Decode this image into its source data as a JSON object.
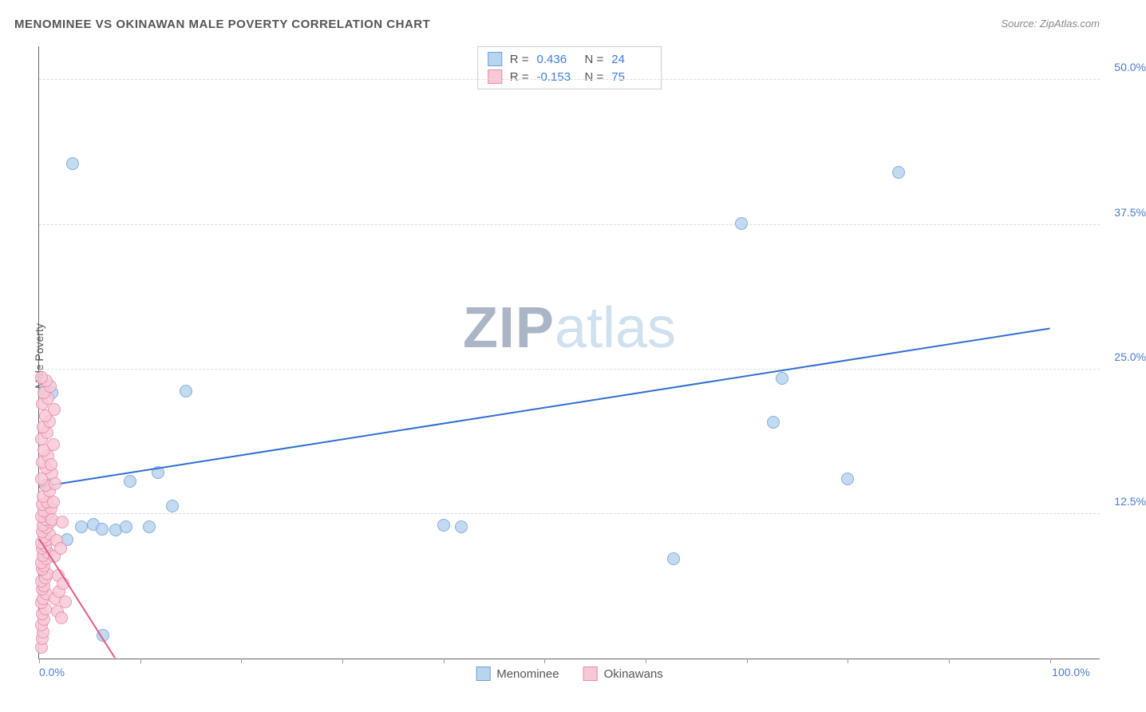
{
  "title": "MENOMINEE VS OKINAWAN MALE POVERTY CORRELATION CHART",
  "source": "Source: ZipAtlas.com",
  "ylabel": "Male Poverty",
  "watermark_zip": "ZIP",
  "watermark_atlas": "atlas",
  "chart": {
    "type": "scatter",
    "xlim": [
      0,
      105
    ],
    "ylim": [
      0,
      53
    ],
    "xticks": [
      0,
      10,
      20,
      30,
      40,
      50,
      60,
      70,
      80,
      90,
      100
    ],
    "xtick_labels_shown": {
      "0": "0.0%",
      "100": "100.0%"
    },
    "yticks": [
      12.5,
      25.0,
      37.5,
      50.0
    ],
    "ytick_labels": [
      "12.5%",
      "25.0%",
      "37.5%",
      "50.0%"
    ],
    "background_color": "#ffffff",
    "grid_color": "#dddddd",
    "axis_color": "#666666",
    "tick_label_color": "#4a7bd0",
    "marker_radius": 8,
    "series": [
      {
        "name": "Menominee",
        "fill": "#b9d4ee",
        "stroke": "#6da3d9",
        "points": [
          [
            0.6,
            23.1
          ],
          [
            1.3,
            23.0
          ],
          [
            6.3,
            2.0
          ],
          [
            4.2,
            11.4
          ],
          [
            5.4,
            11.6
          ],
          [
            6.2,
            11.2
          ],
          [
            7.6,
            11.1
          ],
          [
            2.8,
            10.3
          ],
          [
            8.6,
            11.4
          ],
          [
            9.0,
            15.3
          ],
          [
            10.9,
            11.4
          ],
          [
            13.2,
            13.2
          ],
          [
            11.8,
            16.1
          ],
          [
            3.3,
            42.8
          ],
          [
            14.5,
            23.1
          ],
          [
            40.0,
            11.5
          ],
          [
            41.8,
            11.4
          ],
          [
            0.8,
            15.0
          ],
          [
            62.8,
            8.6
          ],
          [
            69.5,
            37.6
          ],
          [
            73.5,
            24.2
          ],
          [
            72.6,
            20.4
          ],
          [
            80.0,
            15.5
          ],
          [
            85.0,
            42.0
          ]
        ],
        "trend": {
          "x1": 0,
          "y1": 14.8,
          "x2": 100,
          "y2": 28.5,
          "color": "#2f6fd0",
          "width": 2
        }
      },
      {
        "name": "Okinawans",
        "fill": "#f7c9d7",
        "stroke": "#e88aa8",
        "points": [
          [
            0.2,
            1.0
          ],
          [
            0.3,
            1.7
          ],
          [
            0.4,
            2.3
          ],
          [
            0.2,
            2.9
          ],
          [
            0.5,
            3.4
          ],
          [
            0.3,
            3.9
          ],
          [
            0.6,
            4.3
          ],
          [
            0.2,
            4.8
          ],
          [
            0.4,
            5.2
          ],
          [
            0.7,
            5.6
          ],
          [
            0.3,
            6.0
          ],
          [
            0.5,
            6.3
          ],
          [
            0.2,
            6.7
          ],
          [
            0.6,
            7.0
          ],
          [
            0.8,
            7.3
          ],
          [
            0.3,
            7.7
          ],
          [
            0.5,
            8.0
          ],
          [
            0.2,
            8.3
          ],
          [
            0.7,
            8.6
          ],
          [
            0.4,
            8.9
          ],
          [
            0.9,
            9.2
          ],
          [
            0.3,
            9.5
          ],
          [
            0.6,
            9.7
          ],
          [
            0.2,
            10.0
          ],
          [
            0.8,
            10.3
          ],
          [
            0.5,
            10.5
          ],
          [
            1.0,
            10.8
          ],
          [
            0.3,
            11.0
          ],
          [
            0.7,
            11.3
          ],
          [
            0.4,
            11.5
          ],
          [
            1.1,
            11.8
          ],
          [
            0.6,
            12.0
          ],
          [
            0.2,
            12.3
          ],
          [
            0.9,
            12.5
          ],
          [
            0.5,
            12.8
          ],
          [
            1.2,
            13.0
          ],
          [
            0.3,
            13.3
          ],
          [
            0.8,
            13.5
          ],
          [
            0.4,
            14.0
          ],
          [
            1.0,
            14.5
          ],
          [
            0.6,
            15.0
          ],
          [
            0.2,
            15.5
          ],
          [
            1.3,
            16.0
          ],
          [
            0.7,
            16.5
          ],
          [
            0.3,
            17.0
          ],
          [
            0.9,
            17.5
          ],
          [
            0.5,
            18.0
          ],
          [
            1.4,
            18.5
          ],
          [
            0.2,
            19.0
          ],
          [
            0.8,
            19.5
          ],
          [
            0.4,
            20.0
          ],
          [
            1.0,
            20.5
          ],
          [
            0.6,
            21.0
          ],
          [
            1.5,
            21.5
          ],
          [
            0.3,
            22.0
          ],
          [
            0.9,
            22.5
          ],
          [
            0.5,
            23.0
          ],
          [
            1.1,
            23.5
          ],
          [
            0.7,
            24.0
          ],
          [
            0.2,
            24.3
          ],
          [
            1.6,
            5.2
          ],
          [
            1.8,
            4.1
          ],
          [
            2.0,
            5.8
          ],
          [
            2.2,
            3.5
          ],
          [
            1.9,
            7.2
          ],
          [
            2.4,
            6.5
          ],
          [
            1.5,
            8.8
          ],
          [
            2.6,
            4.9
          ],
          [
            1.7,
            10.2
          ],
          [
            1.3,
            12.0
          ],
          [
            2.1,
            9.5
          ],
          [
            1.4,
            13.5
          ],
          [
            2.3,
            11.8
          ],
          [
            1.6,
            15.1
          ],
          [
            1.2,
            16.8
          ]
        ],
        "trend": {
          "x1": 0,
          "y1": 10.3,
          "x2": 7.5,
          "y2": 0,
          "color": "#e05a8a",
          "width": 2
        }
      }
    ]
  },
  "stats": [
    {
      "swatch_fill": "#b9d4ee",
      "swatch_stroke": "#6da3d9",
      "r_label": "R =",
      "r": "0.436",
      "n_label": "N =",
      "n": "24"
    },
    {
      "swatch_fill": "#f7c9d7",
      "swatch_stroke": "#e88aa8",
      "r_label": "R =",
      "r": "-0.153",
      "n_label": "N =",
      "n": "75"
    }
  ],
  "legend": [
    {
      "swatch_fill": "#b9d4ee",
      "swatch_stroke": "#6da3d9",
      "label": "Menominee"
    },
    {
      "swatch_fill": "#f7c9d7",
      "swatch_stroke": "#e88aa8",
      "label": "Okinawans"
    }
  ]
}
